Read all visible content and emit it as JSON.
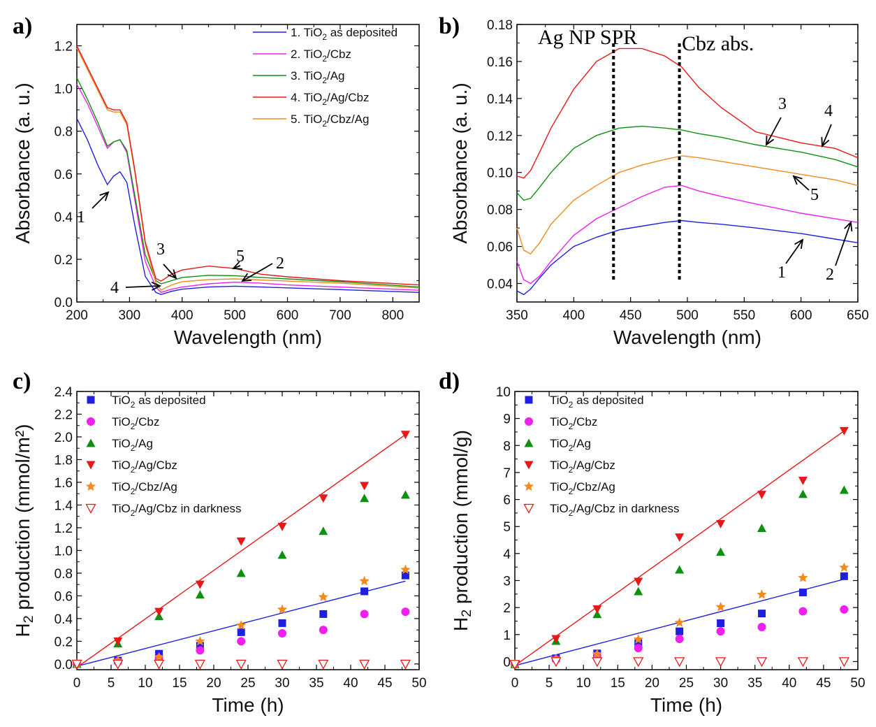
{
  "panel_labels": [
    "a)",
    "b)",
    "c)",
    "d)"
  ],
  "colors": {
    "tio2": "#1f1fe0",
    "tio2_cbz": "#f020f0",
    "tio2_ag": "#109010",
    "tio2_ag_cbz": "#e81818",
    "tio2_cbz_ag": "#f28a1e",
    "dark": "#e81818"
  },
  "chart_data": [
    {
      "panel": "a)",
      "type": "line",
      "xlabel": "Wavelength (nm)",
      "ylabel": "Absorbance (a. u.)",
      "xlim": [
        200,
        850
      ],
      "ylim": [
        0.0,
        1.3
      ],
      "xticks": [
        "200",
        "300",
        "400",
        "500",
        "600",
        "700",
        "800"
      ],
      "yticks": [
        "0.0",
        "0.2",
        "0.4",
        "0.6",
        "0.8",
        "1.0",
        "1.2"
      ],
      "legend_position": "top-right",
      "legend": [
        {
          "num": "1. TiO",
          "sub": "2",
          "rest": " as deposited"
        },
        {
          "num": "2. TiO",
          "sub": "2",
          "rest": "/Cbz"
        },
        {
          "num": "3. TiO",
          "sub": "2",
          "rest": "/Ag"
        },
        {
          "num": "4. TiO",
          "sub": "2",
          "rest": "/Ag/Cbz"
        },
        {
          "num": "5. TiO",
          "sub": "2",
          "rest": "/Cbz/Ag"
        }
      ],
      "series": [
        {
          "x": [
            200,
            220,
            240,
            258,
            270,
            282,
            295,
            310,
            330,
            350,
            360,
            380,
            400,
            450,
            500,
            550,
            600,
            700,
            850
          ],
          "y": [
            0.86,
            0.76,
            0.64,
            0.55,
            0.59,
            0.61,
            0.56,
            0.36,
            0.12,
            0.045,
            0.035,
            0.05,
            0.06,
            0.07,
            0.074,
            0.07,
            0.066,
            0.058,
            0.045
          ]
        },
        {
          "x": [
            200,
            220,
            240,
            258,
            270,
            282,
            295,
            310,
            330,
            350,
            360,
            380,
            400,
            450,
            500,
            550,
            600,
            700,
            850
          ],
          "y": [
            1.02,
            0.93,
            0.82,
            0.72,
            0.75,
            0.76,
            0.7,
            0.48,
            0.19,
            0.07,
            0.045,
            0.06,
            0.07,
            0.085,
            0.093,
            0.088,
            0.08,
            0.07,
            0.055
          ]
        },
        {
          "x": [
            200,
            220,
            240,
            258,
            270,
            282,
            295,
            310,
            330,
            350,
            360,
            380,
            400,
            450,
            500,
            550,
            600,
            700,
            850
          ],
          "y": [
            1.05,
            0.95,
            0.84,
            0.73,
            0.75,
            0.76,
            0.71,
            0.5,
            0.22,
            0.1,
            0.085,
            0.1,
            0.115,
            0.125,
            0.123,
            0.115,
            0.108,
            0.095,
            0.07
          ]
        },
        {
          "x": [
            200,
            220,
            240,
            258,
            270,
            282,
            295,
            310,
            330,
            350,
            360,
            380,
            400,
            450,
            500,
            550,
            600,
            700,
            850
          ],
          "y": [
            1.2,
            1.1,
            1.0,
            0.91,
            0.9,
            0.9,
            0.84,
            0.62,
            0.28,
            0.11,
            0.098,
            0.13,
            0.15,
            0.168,
            0.157,
            0.13,
            0.118,
            0.1,
            0.08
          ]
        },
        {
          "x": [
            200,
            220,
            240,
            258,
            270,
            282,
            295,
            310,
            330,
            350,
            360,
            380,
            400,
            450,
            500,
            550,
            600,
            700,
            850
          ],
          "y": [
            1.19,
            1.09,
            0.99,
            0.9,
            0.89,
            0.89,
            0.83,
            0.61,
            0.27,
            0.09,
            0.056,
            0.08,
            0.095,
            0.105,
            0.108,
            0.103,
            0.098,
            0.088,
            0.065
          ]
        }
      ],
      "annotations": [
        "1",
        "2",
        "3",
        "4",
        "5"
      ]
    },
    {
      "panel": "b)",
      "type": "line",
      "xlabel": "Wavelength (nm)",
      "ylabel": "Absorbance (a. u.)",
      "xlim": [
        350,
        650
      ],
      "ylim": [
        0.03,
        0.18
      ],
      "xticks": [
        "350",
        "400",
        "450",
        "500",
        "550",
        "600",
        "650"
      ],
      "yticks": [
        "0.04",
        "0.06",
        "0.08",
        "0.10",
        "0.12",
        "0.14",
        "0.16",
        "0.18"
      ],
      "text_annotations": [
        "Ag NP SPR",
        "Cbz abs."
      ],
      "vlines_nm": [
        435,
        493
      ],
      "series": [
        {
          "x": [
            350,
            356,
            362,
            370,
            380,
            400,
            420,
            440,
            460,
            480,
            495,
            510,
            530,
            560,
            600,
            630,
            650
          ],
          "y": [
            0.036,
            0.034,
            0.037,
            0.043,
            0.05,
            0.06,
            0.065,
            0.069,
            0.071,
            0.073,
            0.074,
            0.073,
            0.072,
            0.07,
            0.067,
            0.064,
            0.062
          ]
        },
        {
          "x": [
            350,
            356,
            362,
            370,
            380,
            400,
            420,
            440,
            460,
            480,
            495,
            510,
            530,
            560,
            600,
            630,
            650
          ],
          "y": [
            0.052,
            0.042,
            0.04,
            0.044,
            0.052,
            0.066,
            0.075,
            0.081,
            0.087,
            0.092,
            0.093,
            0.09,
            0.087,
            0.083,
            0.078,
            0.075,
            0.073
          ]
        },
        {
          "x": [
            350,
            356,
            362,
            370,
            380,
            400,
            420,
            440,
            460,
            480,
            495,
            510,
            530,
            560,
            600,
            630,
            650
          ],
          "y": [
            0.089,
            0.085,
            0.086,
            0.092,
            0.1,
            0.113,
            0.12,
            0.124,
            0.125,
            0.124,
            0.123,
            0.121,
            0.119,
            0.115,
            0.111,
            0.107,
            0.103
          ]
        },
        {
          "x": [
            350,
            356,
            362,
            370,
            380,
            400,
            420,
            440,
            460,
            480,
            495,
            510,
            530,
            560,
            600,
            630,
            650
          ],
          "y": [
            0.098,
            0.097,
            0.101,
            0.111,
            0.124,
            0.145,
            0.16,
            0.167,
            0.167,
            0.163,
            0.157,
            0.146,
            0.135,
            0.122,
            0.116,
            0.113,
            0.108
          ]
        },
        {
          "x": [
            350,
            356,
            362,
            370,
            380,
            400,
            420,
            440,
            460,
            480,
            495,
            510,
            530,
            560,
            600,
            630,
            650
          ],
          "y": [
            0.07,
            0.058,
            0.056,
            0.062,
            0.072,
            0.085,
            0.093,
            0.1,
            0.104,
            0.107,
            0.109,
            0.108,
            0.106,
            0.103,
            0.099,
            0.096,
            0.093
          ]
        }
      ],
      "annotations": [
        "1",
        "2",
        "3",
        "4",
        "5"
      ]
    },
    {
      "panel": "c)",
      "type": "scatter",
      "xlabel": "Time (h)",
      "ylabel": "H",
      "ylabel_sub": "2",
      "ylabel_rest": " production (mmol/m²)",
      "xlim": [
        0,
        50
      ],
      "ylim": [
        -0.05,
        2.4
      ],
      "xticks": [
        "0",
        "5",
        "10",
        "15",
        "20",
        "25",
        "30",
        "35",
        "40",
        "45",
        "50"
      ],
      "yticks": [
        "0.0",
        "0.2",
        "0.4",
        "0.6",
        "0.8",
        "1.0",
        "1.2",
        "1.4",
        "1.6",
        "1.8",
        "2.0",
        "2.2",
        "2.4"
      ],
      "legend_position": "top-left",
      "x": [
        0,
        6,
        12,
        18,
        24,
        30,
        36,
        42,
        48
      ],
      "series": [
        {
          "label": "TiO",
          "sub": "2",
          "rest": " as deposited",
          "marker": "square",
          "values": [
            0.0,
            0.03,
            0.09,
            0.16,
            0.28,
            0.36,
            0.44,
            0.64,
            0.78
          ]
        },
        {
          "label": "TiO",
          "sub": "2",
          "rest": "/Cbz",
          "marker": "circle",
          "values": [
            0.0,
            0.02,
            0.05,
            0.12,
            0.2,
            0.27,
            0.3,
            0.44,
            0.46
          ]
        },
        {
          "label": "TiO",
          "sub": "2",
          "rest": "/Ag",
          "marker": "triangle-up",
          "values": [
            0.0,
            0.18,
            0.42,
            0.61,
            0.8,
            0.96,
            1.17,
            1.46,
            1.49
          ]
        },
        {
          "label": "TiO",
          "sub": "2",
          "rest": "/Ag/Cbz",
          "marker": "triangle-down",
          "values": [
            0.0,
            0.2,
            0.46,
            0.7,
            1.08,
            1.21,
            1.46,
            1.57,
            2.02
          ]
        },
        {
          "label": "TiO",
          "sub": "2",
          "rest": "/Cbz/Ag",
          "marker": "star",
          "values": [
            0.0,
            0.03,
            0.06,
            0.2,
            0.34,
            0.48,
            0.59,
            0.73,
            0.83
          ]
        },
        {
          "label": "TiO",
          "sub": "2",
          "rest": "/Ag/Cbz in darkness",
          "marker": "triangle-down-open",
          "values": [
            0.0,
            0.0,
            0.0,
            0.0,
            0.0,
            0.0,
            0.0,
            0.0,
            0.0
          ]
        }
      ],
      "fit_lines": [
        {
          "color": "#e81818",
          "x": [
            0,
            48
          ],
          "y": [
            -0.03,
            2.02
          ]
        },
        {
          "color": "#1f1fe0",
          "x": [
            0,
            48
          ],
          "y": [
            -0.02,
            0.73
          ]
        }
      ]
    },
    {
      "panel": "d)",
      "type": "scatter",
      "xlabel": "Time (h)",
      "ylabel": "H",
      "ylabel_sub": "2",
      "ylabel_rest": " production (mmol/g)",
      "xlim": [
        0,
        50
      ],
      "ylim": [
        -0.3,
        10
      ],
      "xticks": [
        "0",
        "5",
        "10",
        "15",
        "20",
        "25",
        "30",
        "35",
        "40",
        "45",
        "50"
      ],
      "yticks": [
        "0",
        "1",
        "2",
        "3",
        "4",
        "5",
        "6",
        "7",
        "8",
        "9",
        "10"
      ],
      "legend_position": "top-left",
      "x": [
        0,
        6,
        12,
        18,
        24,
        30,
        36,
        42,
        48
      ],
      "series": [
        {
          "label": "TiO",
          "sub": "2",
          "rest": " as deposited",
          "marker": "square",
          "values": [
            -0.1,
            0.12,
            0.3,
            0.68,
            1.12,
            1.42,
            1.78,
            2.56,
            3.16
          ]
        },
        {
          "label": "TiO",
          "sub": "2",
          "rest": "/Cbz",
          "marker": "circle",
          "values": [
            -0.1,
            0.08,
            0.22,
            0.5,
            0.84,
            1.12,
            1.28,
            1.86,
            1.93
          ]
        },
        {
          "label": "TiO",
          "sub": "2",
          "rest": "/Ag",
          "marker": "triangle-up",
          "values": [
            -0.1,
            0.76,
            1.75,
            2.6,
            3.4,
            4.06,
            4.94,
            6.2,
            6.35
          ]
        },
        {
          "label": "TiO",
          "sub": "2",
          "rest": "/Ag/Cbz",
          "marker": "triangle-down",
          "values": [
            -0.1,
            0.84,
            1.94,
            2.96,
            4.6,
            5.1,
            6.18,
            6.7,
            8.54
          ]
        },
        {
          "label": "TiO",
          "sub": "2",
          "rest": "/Cbz/Ag",
          "marker": "star",
          "values": [
            -0.1,
            0.1,
            0.28,
            0.82,
            1.44,
            2.02,
            2.48,
            3.1,
            3.48
          ]
        },
        {
          "label": "TiO",
          "sub": "2",
          "rest": "/Ag/Cbz in darkness",
          "marker": "triangle-down-open",
          "values": [
            -0.1,
            0.0,
            0.0,
            0.0,
            0.0,
            0.0,
            0.0,
            0.0,
            0.0
          ]
        }
      ],
      "fit_lines": [
        {
          "color": "#e81818",
          "x": [
            0,
            48
          ],
          "y": [
            -0.15,
            8.54
          ]
        },
        {
          "color": "#1f1fe0",
          "x": [
            0,
            48
          ],
          "y": [
            -0.15,
            3.05
          ]
        }
      ]
    }
  ]
}
